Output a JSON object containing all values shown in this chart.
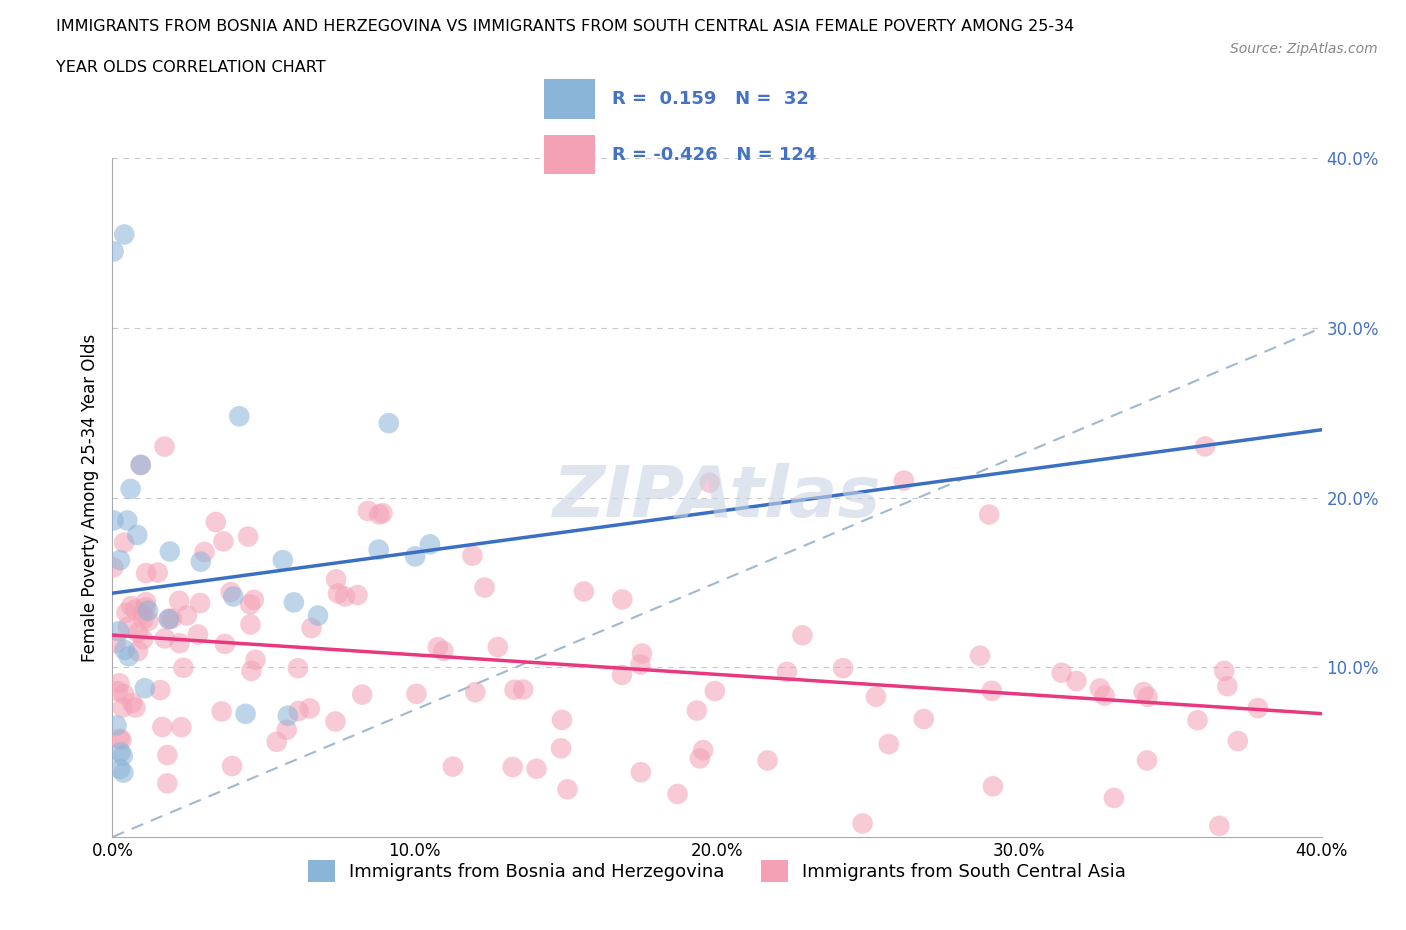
{
  "title_line1": "IMMIGRANTS FROM BOSNIA AND HERZEGOVINA VS IMMIGRANTS FROM SOUTH CENTRAL ASIA FEMALE POVERTY AMONG 25-34",
  "title_line2": "YEAR OLDS CORRELATION CHART",
  "source_text": "Source: ZipAtlas.com",
  "ylabel": "Female Poverty Among 25-34 Year Olds",
  "xlim": [
    0.0,
    0.4
  ],
  "ylim": [
    0.0,
    0.4
  ],
  "legend_label1": "Immigrants from Bosnia and Herzegovina",
  "legend_label2": "Immigrants from South Central Asia",
  "R1": 0.159,
  "N1": 32,
  "R2": -0.426,
  "N2": 124,
  "color_blue": "#8ab4d8",
  "color_pink": "#f4a0b5",
  "color_blue_line": "#3a6fc4",
  "color_pink_line": "#e83880",
  "color_blue_text": "#4472c4",
  "color_dash": "#a0b8d0",
  "watermark_color": "#c8d4e4",
  "background_color": "#ffffff",
  "grid_color": "#c8c8c8",
  "title_fontsize": 11.5,
  "tick_fontsize": 12,
  "ylabel_fontsize": 12
}
